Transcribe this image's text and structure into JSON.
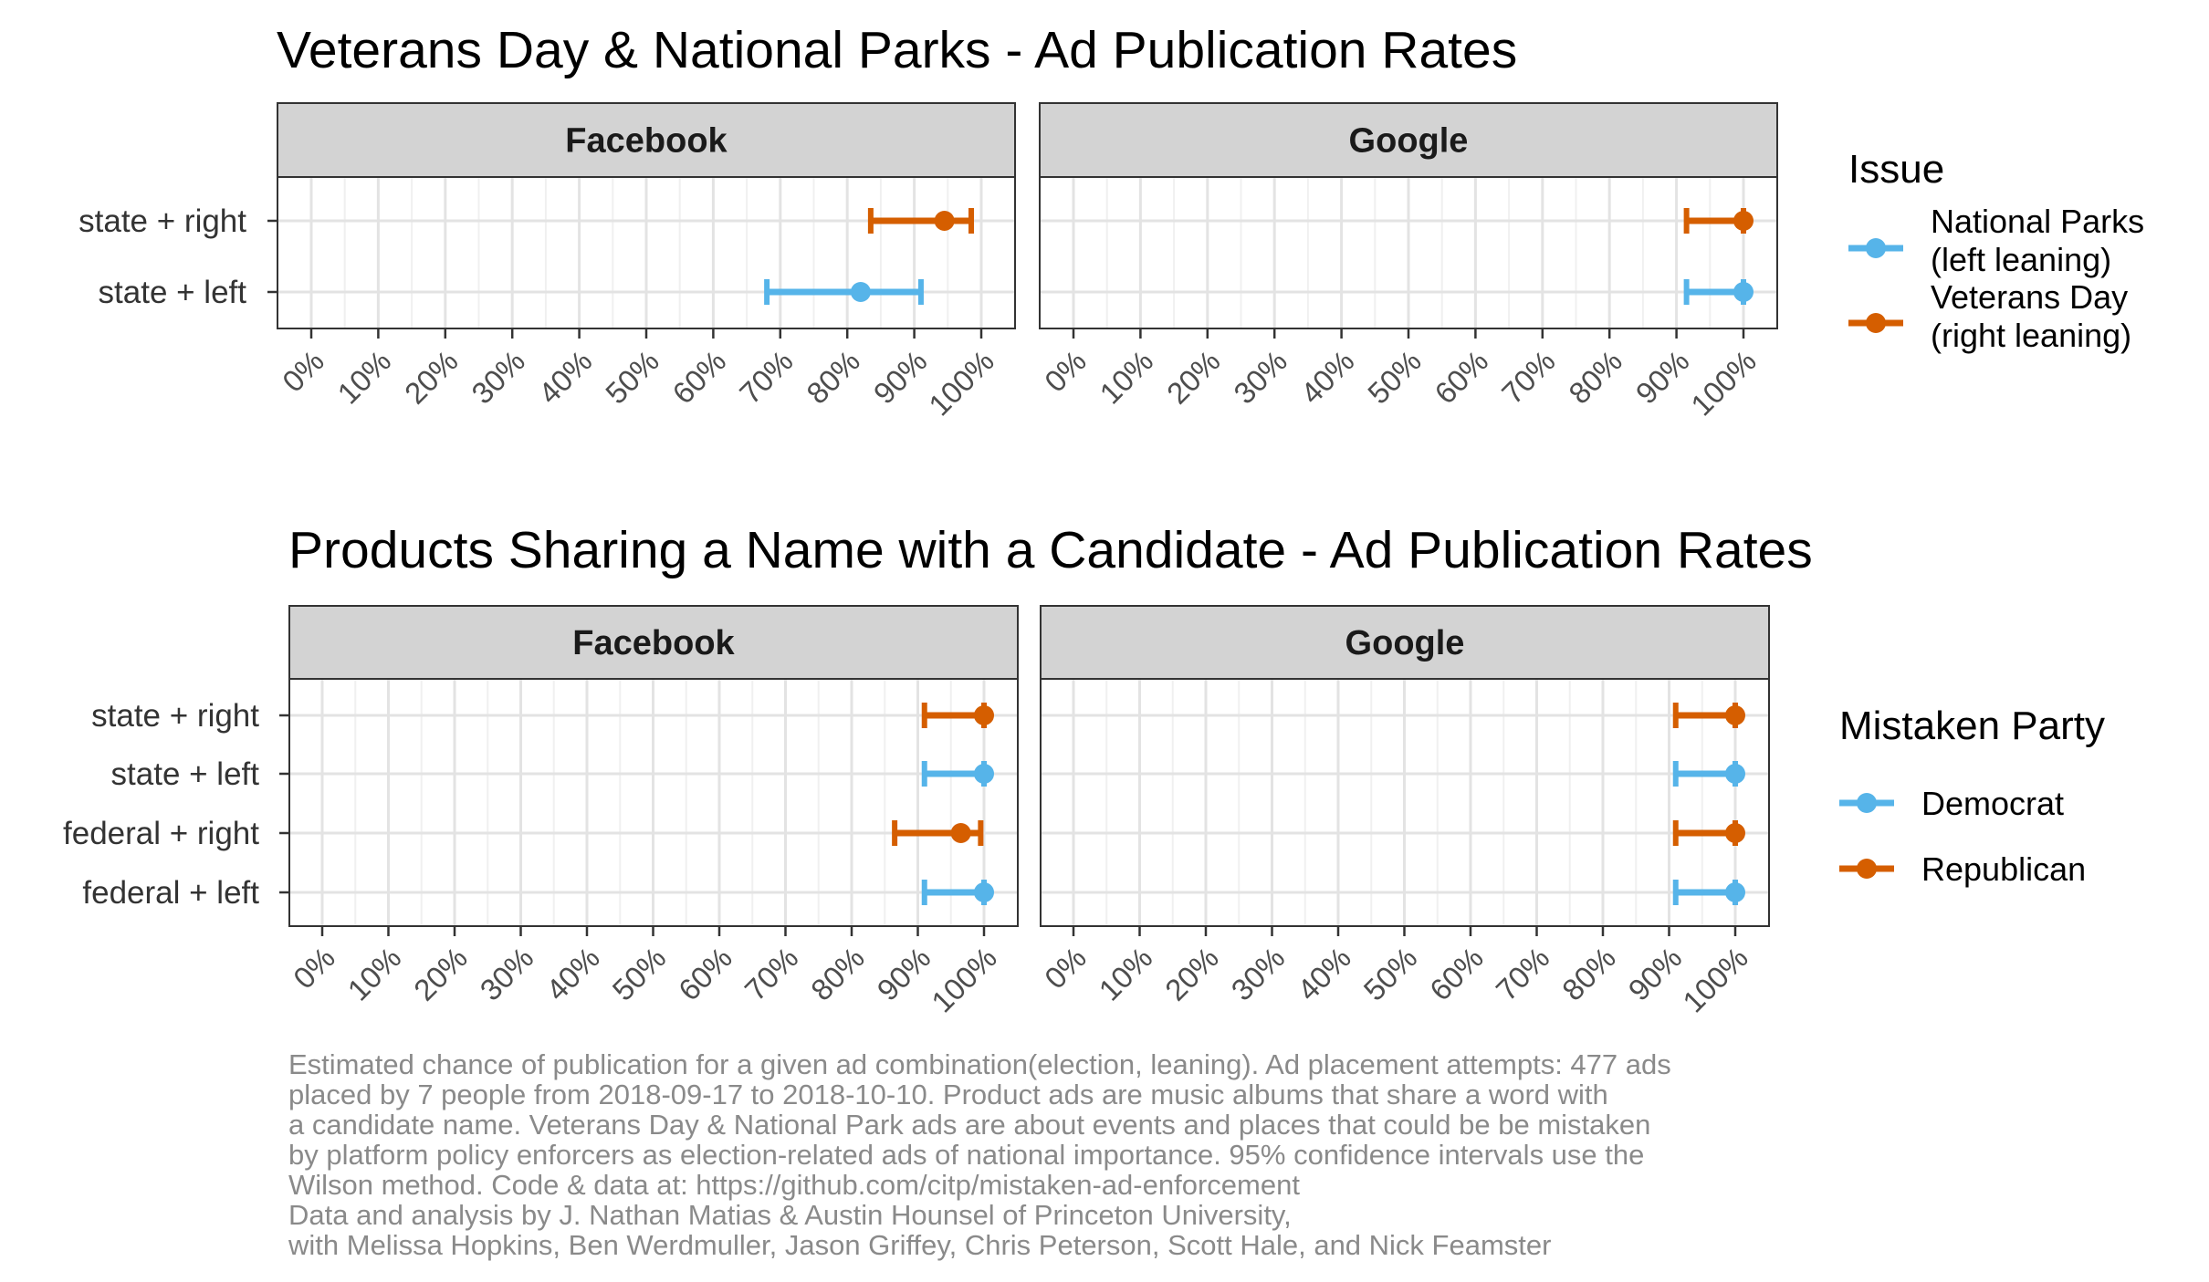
{
  "chart_data": [
    {
      "type": "errorbar",
      "title": "Veterans Day & National Parks - Ad Publication Rates",
      "facets": [
        "Facebook",
        "Google"
      ],
      "categories": [
        "state + right",
        "state + left"
      ],
      "x_ticks": [
        "0%",
        "10%",
        "20%",
        "30%",
        "40%",
        "50%",
        "60%",
        "70%",
        "80%",
        "90%",
        "100%"
      ],
      "xlim": [
        0,
        100
      ],
      "legend": {
        "title": "Issue",
        "placement": "right",
        "entries": [
          {
            "label": [
              "National Parks",
              "(left leaning)"
            ],
            "color": "#56B4E9"
          },
          {
            "label": [
              "Veterans Day",
              "(right leaning)"
            ],
            "color": "#D55E00"
          }
        ]
      },
      "series": [
        {
          "facet": "Facebook",
          "category": "state + right",
          "color": "#D55E00",
          "estimate": 94.5,
          "low": 83.5,
          "high": 98.5
        },
        {
          "facet": "Facebook",
          "category": "state + left",
          "color": "#56B4E9",
          "estimate": 82.0,
          "low": 68.0,
          "high": 91.0
        },
        {
          "facet": "Google",
          "category": "state + right",
          "color": "#D55E00",
          "estimate": 100,
          "low": 91.5,
          "high": 100
        },
        {
          "facet": "Google",
          "category": "state + left",
          "color": "#56B4E9",
          "estimate": 100,
          "low": 91.5,
          "high": 100
        }
      ]
    },
    {
      "type": "errorbar",
      "title": "Products Sharing a Name with a Candidate - Ad Publication Rates",
      "facets": [
        "Facebook",
        "Google"
      ],
      "categories": [
        "state + right",
        "state + left",
        "federal + right",
        "federal + left"
      ],
      "x_ticks": [
        "0%",
        "10%",
        "20%",
        "30%",
        "40%",
        "50%",
        "60%",
        "70%",
        "80%",
        "90%",
        "100%"
      ],
      "xlim": [
        0,
        100
      ],
      "legend": {
        "title": "Mistaken Party",
        "placement": "right",
        "entries": [
          {
            "label": [
              "Democrat"
            ],
            "color": "#56B4E9"
          },
          {
            "label": [
              "Republican"
            ],
            "color": "#D55E00"
          }
        ]
      },
      "series": [
        {
          "facet": "Facebook",
          "category": "state + right",
          "color": "#D55E00",
          "estimate": 100,
          "low": 91.0,
          "high": 100
        },
        {
          "facet": "Facebook",
          "category": "state + left",
          "color": "#56B4E9",
          "estimate": 100,
          "low": 91.0,
          "high": 100
        },
        {
          "facet": "Facebook",
          "category": "federal + right",
          "color": "#D55E00",
          "estimate": 96.5,
          "low": 86.5,
          "high": 99.5
        },
        {
          "facet": "Facebook",
          "category": "federal + left",
          "color": "#56B4E9",
          "estimate": 100,
          "low": 91.0,
          "high": 100
        },
        {
          "facet": "Google",
          "category": "state + right",
          "color": "#D55E00",
          "estimate": 100,
          "low": 91.0,
          "high": 100
        },
        {
          "facet": "Google",
          "category": "state + left",
          "color": "#56B4E9",
          "estimate": 100,
          "low": 91.0,
          "high": 100
        },
        {
          "facet": "Google",
          "category": "federal + right",
          "color": "#D55E00",
          "estimate": 100,
          "low": 91.0,
          "high": 100
        },
        {
          "facet": "Google",
          "category": "federal + left",
          "color": "#56B4E9",
          "estimate": 100,
          "low": 91.0,
          "high": 100
        }
      ]
    }
  ],
  "caption": {
    "lines": [
      "Estimated chance of publication for a given ad combination(election, leaning). Ad placement attempts: 477 ads",
      "placed by 7 people from 2018-09-17 to 2018-10-10. Product ads are music albums that share a word with",
      "a candidate name. Veterans Day & National Park ads are about events and places that could be be mistaken",
      "by platform policy enforcers as election-related ads of national importance. 95% confidence intervals use the",
      "Wilson method. Code & data at: https://github.com/citp/mistaken-ad-enforcement",
      "Data and analysis by J. Nathan Matias & Austin Hounsel of Princeton University,",
      "with Melissa Hopkins, Ben Werdmuller, Jason Griffey, Chris Peterson, Scott Hale, and Nick Feamster"
    ]
  }
}
